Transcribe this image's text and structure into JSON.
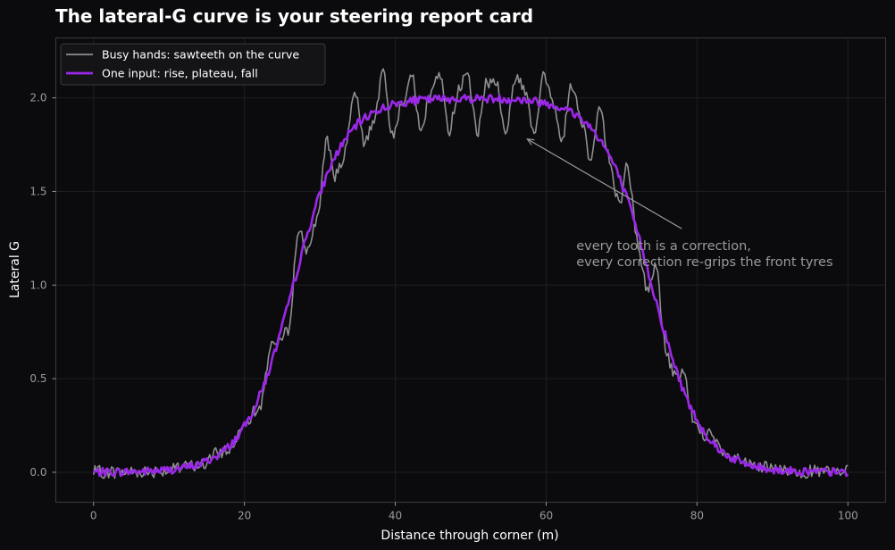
{
  "chart_data": {
    "type": "line",
    "title": "The lateral-G curve is your steering report card",
    "xlabel": "Distance through corner (m)",
    "ylabel": "Lateral G",
    "xlim": [
      -5,
      105
    ],
    "ylim": [
      -0.16,
      2.32
    ],
    "x_ticks": [
      0,
      20,
      40,
      60,
      80,
      100
    ],
    "y_ticks": [
      0.0,
      0.5,
      1.0,
      1.5,
      2.0
    ],
    "x_tick_labels": [
      "0",
      "20",
      "40",
      "60",
      "80",
      "100"
    ],
    "y_tick_labels": [
      "0.0",
      "0.5",
      "1.0",
      "1.5",
      "2.0"
    ],
    "grid": true,
    "legend_position": "top-left",
    "series": [
      {
        "name": "Busy hands: sawteeth on the curve",
        "color": "#8e8e93",
        "x_range": [
          0,
          100
        ],
        "shape": "smooth lift-plateau-fall to 2.0 G with sawtooth corrections of about 0.2 G amplitude",
        "peak": 2.2
      },
      {
        "name": "One input: rise, plateau, fall",
        "color": "#9b27e8",
        "x_range": [
          0,
          100
        ],
        "shape": "smooth rise from 0 to 2.0 G, plateau from about 40 m to 60 m, smooth fall to 0 by about 90 m",
        "peak": 2.0
      }
    ],
    "annotation": {
      "lines": [
        "every tooth is a correction,",
        "every correction re-grips the front tyres"
      ],
      "arrow_to": [
        57.5,
        1.78
      ],
      "text_at": [
        64,
        1.12
      ]
    }
  }
}
